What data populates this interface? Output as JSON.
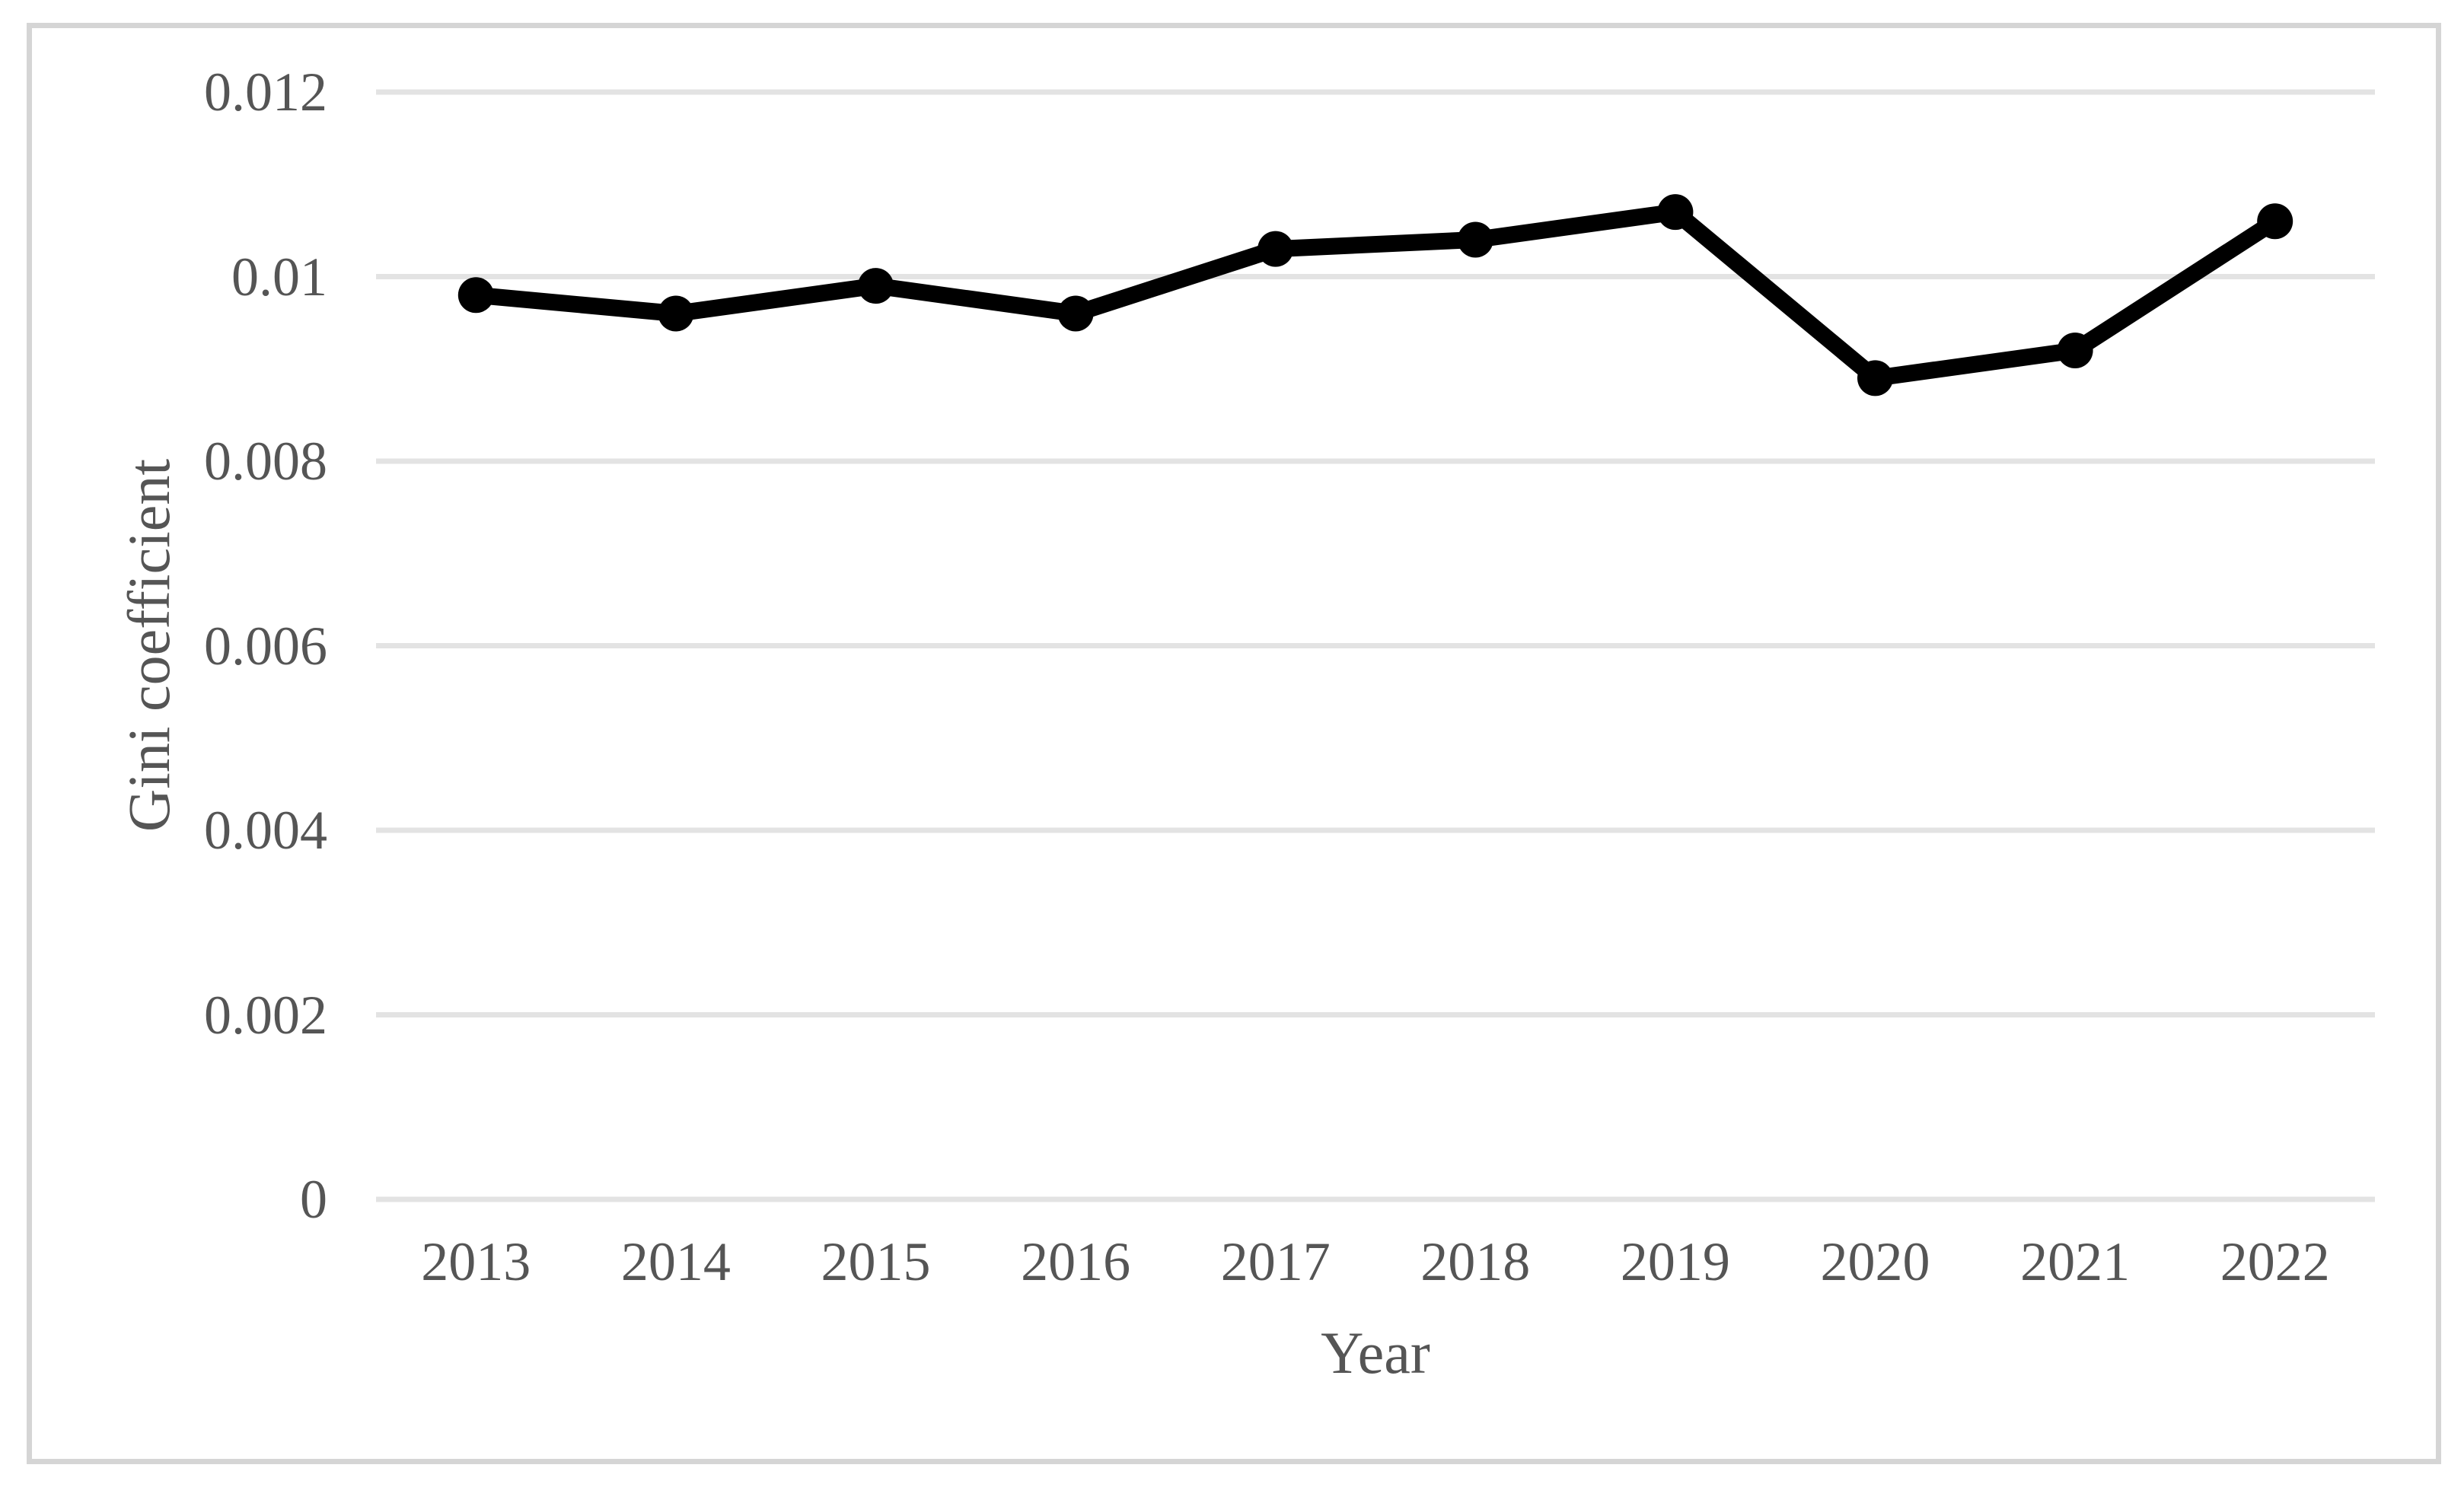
{
  "chart_data": {
    "type": "line",
    "title": "",
    "categories": [
      "2013",
      "2014",
      "2015",
      "2016",
      "2017",
      "2018",
      "2019",
      "2020",
      "2021",
      "2022"
    ],
    "values": [
      0.0098,
      0.0096,
      0.0099,
      0.0096,
      0.0103,
      0.0104,
      0.0107,
      0.0089,
      0.0092,
      0.0106
    ],
    "series_name": "Gini coefficient",
    "xlabel": "Year",
    "ylabel": "Gini coefficient",
    "ylim": [
      0,
      0.012
    ],
    "ytick_labels": [
      "0",
      "0.002",
      "0.004",
      "0.006",
      "0.008",
      "0.01",
      "0.012"
    ],
    "grid": "horizontal",
    "legend": "none",
    "line_color": "#000000",
    "marker": "circle",
    "gridline_color": "#e3e3e3",
    "frame_border_color": "#d5d5d5",
    "text_color": "#555555",
    "background_color": "#ffffff"
  }
}
